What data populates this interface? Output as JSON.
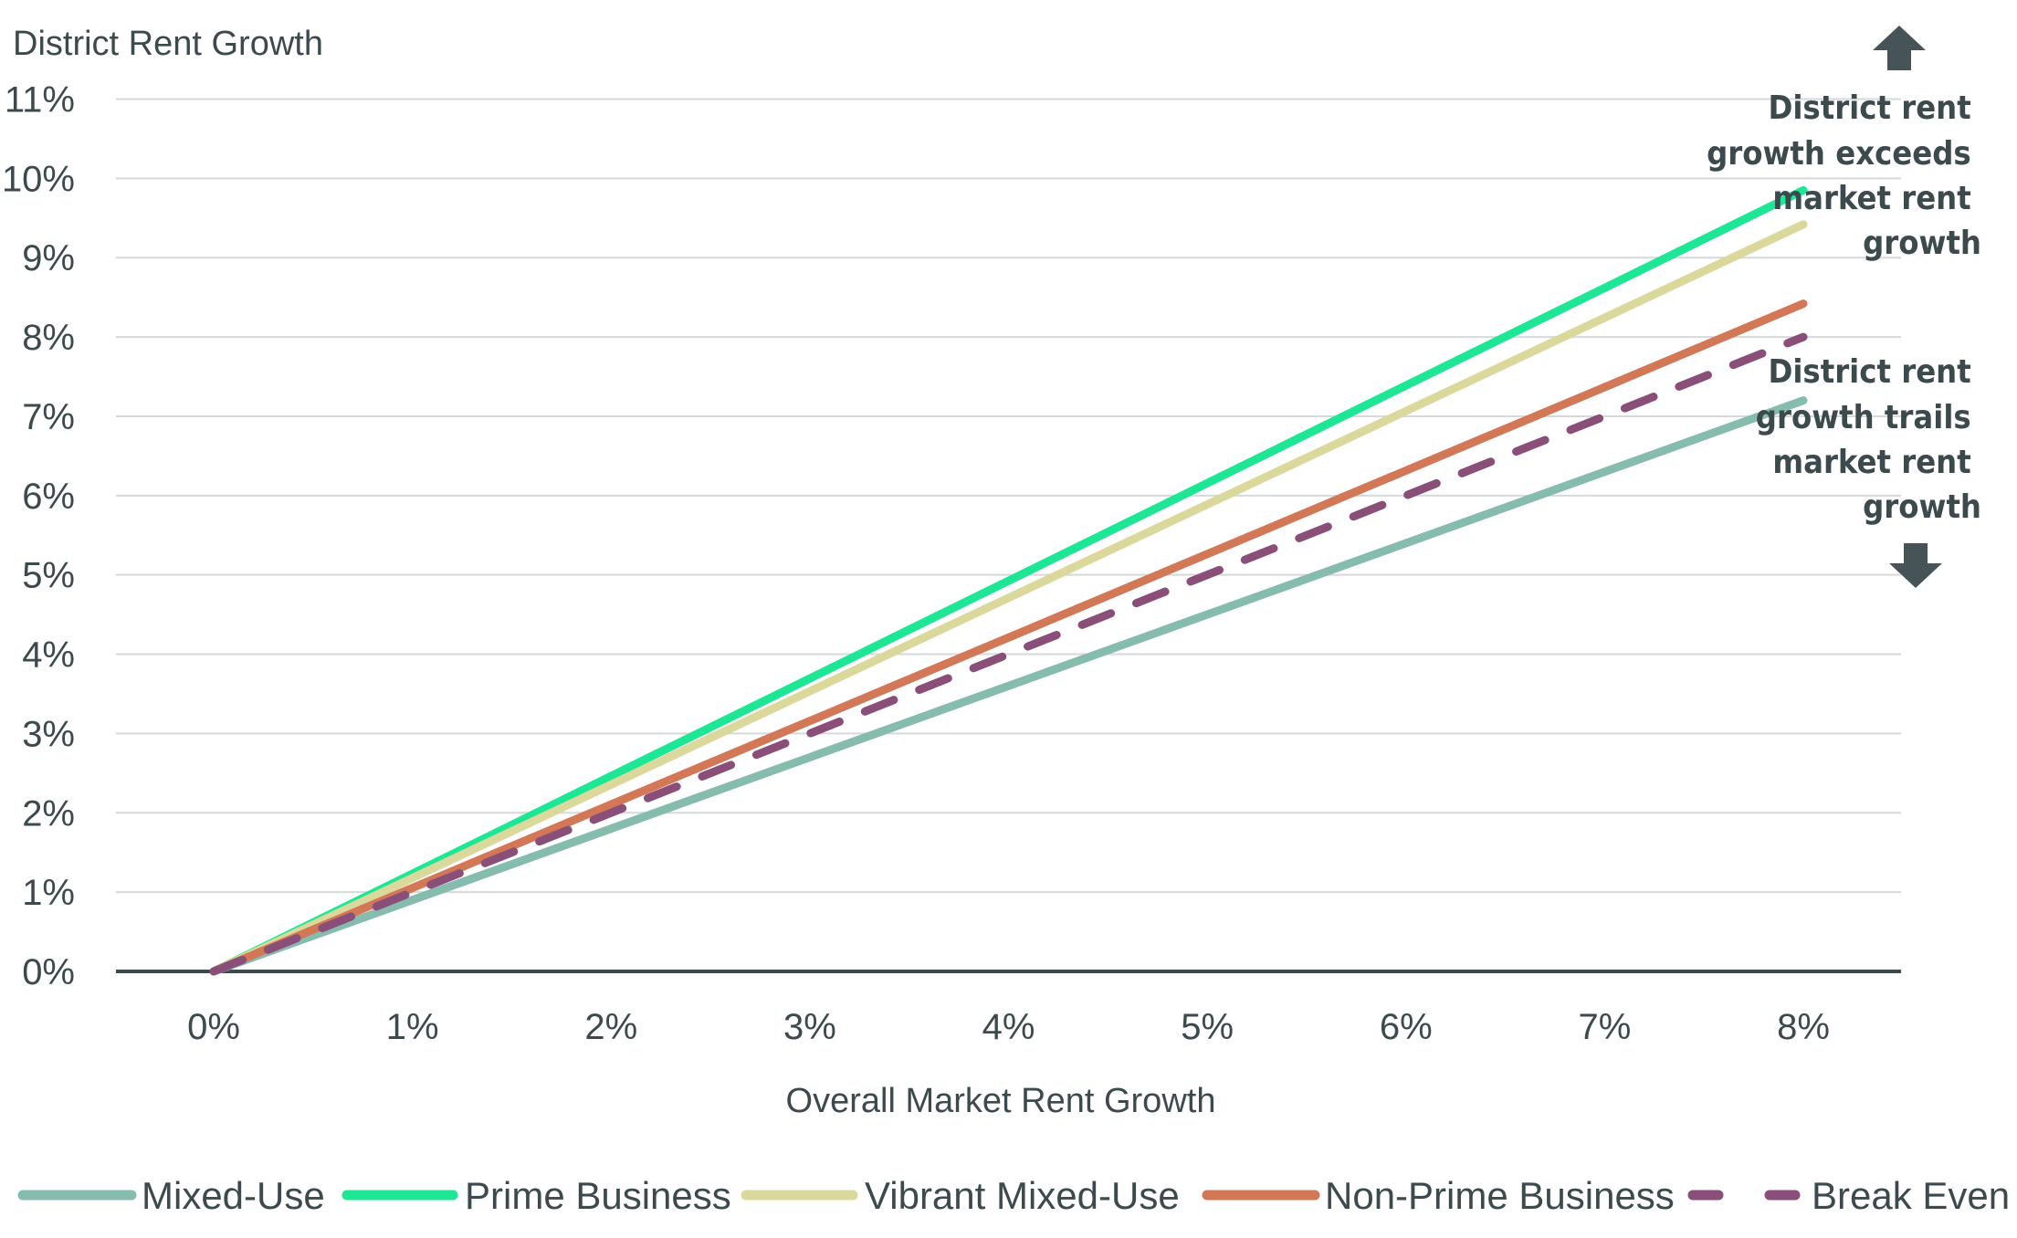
{
  "chart_data": {
    "type": "line",
    "title": "",
    "ylabel": "District Rent Growth",
    "xlabel": "Overall Market Rent Growth",
    "xlim": [
      0,
      8
    ],
    "ylim": [
      0,
      11
    ],
    "x_ticks": [
      "0%",
      "1%",
      "2%",
      "3%",
      "4%",
      "5%",
      "6%",
      "7%",
      "8%"
    ],
    "y_ticks": [
      "0%",
      "1%",
      "2%",
      "3%",
      "4%",
      "5%",
      "6%",
      "7%",
      "8%",
      "9%",
      "10%",
      "11%"
    ],
    "grid": "horizontal",
    "legend_position": "bottom",
    "series": [
      {
        "name": "Mixed-Use",
        "color": "#86bcae",
        "dashed": false,
        "x": [
          0,
          8
        ],
        "y": [
          0,
          7.2
        ]
      },
      {
        "name": "Prime Business",
        "color": "#1de694",
        "dashed": false,
        "x": [
          0,
          8
        ],
        "y": [
          0,
          9.85
        ]
      },
      {
        "name": "Vibrant Mixed-Use",
        "color": "#dbd89c",
        "dashed": false,
        "x": [
          0,
          8
        ],
        "y": [
          0,
          9.42
        ]
      },
      {
        "name": "Non-Prime Business",
        "color": "#d27857",
        "dashed": false,
        "x": [
          0,
          8
        ],
        "y": [
          0,
          8.42
        ]
      },
      {
        "name": "Break Even",
        "color": "#8a4f79",
        "dashed": true,
        "x": [
          0,
          8
        ],
        "y": [
          0,
          8
        ]
      }
    ],
    "annotations": {
      "above": [
        "District rent",
        "growth exceeds",
        "market rent",
        "growth"
      ],
      "below": [
        "District rent",
        "growth trails",
        "market rent",
        "growth"
      ]
    },
    "arrow_icons": [
      "arrow-up-icon",
      "arrow-down-icon"
    ],
    "arrow_color": "#465457"
  }
}
